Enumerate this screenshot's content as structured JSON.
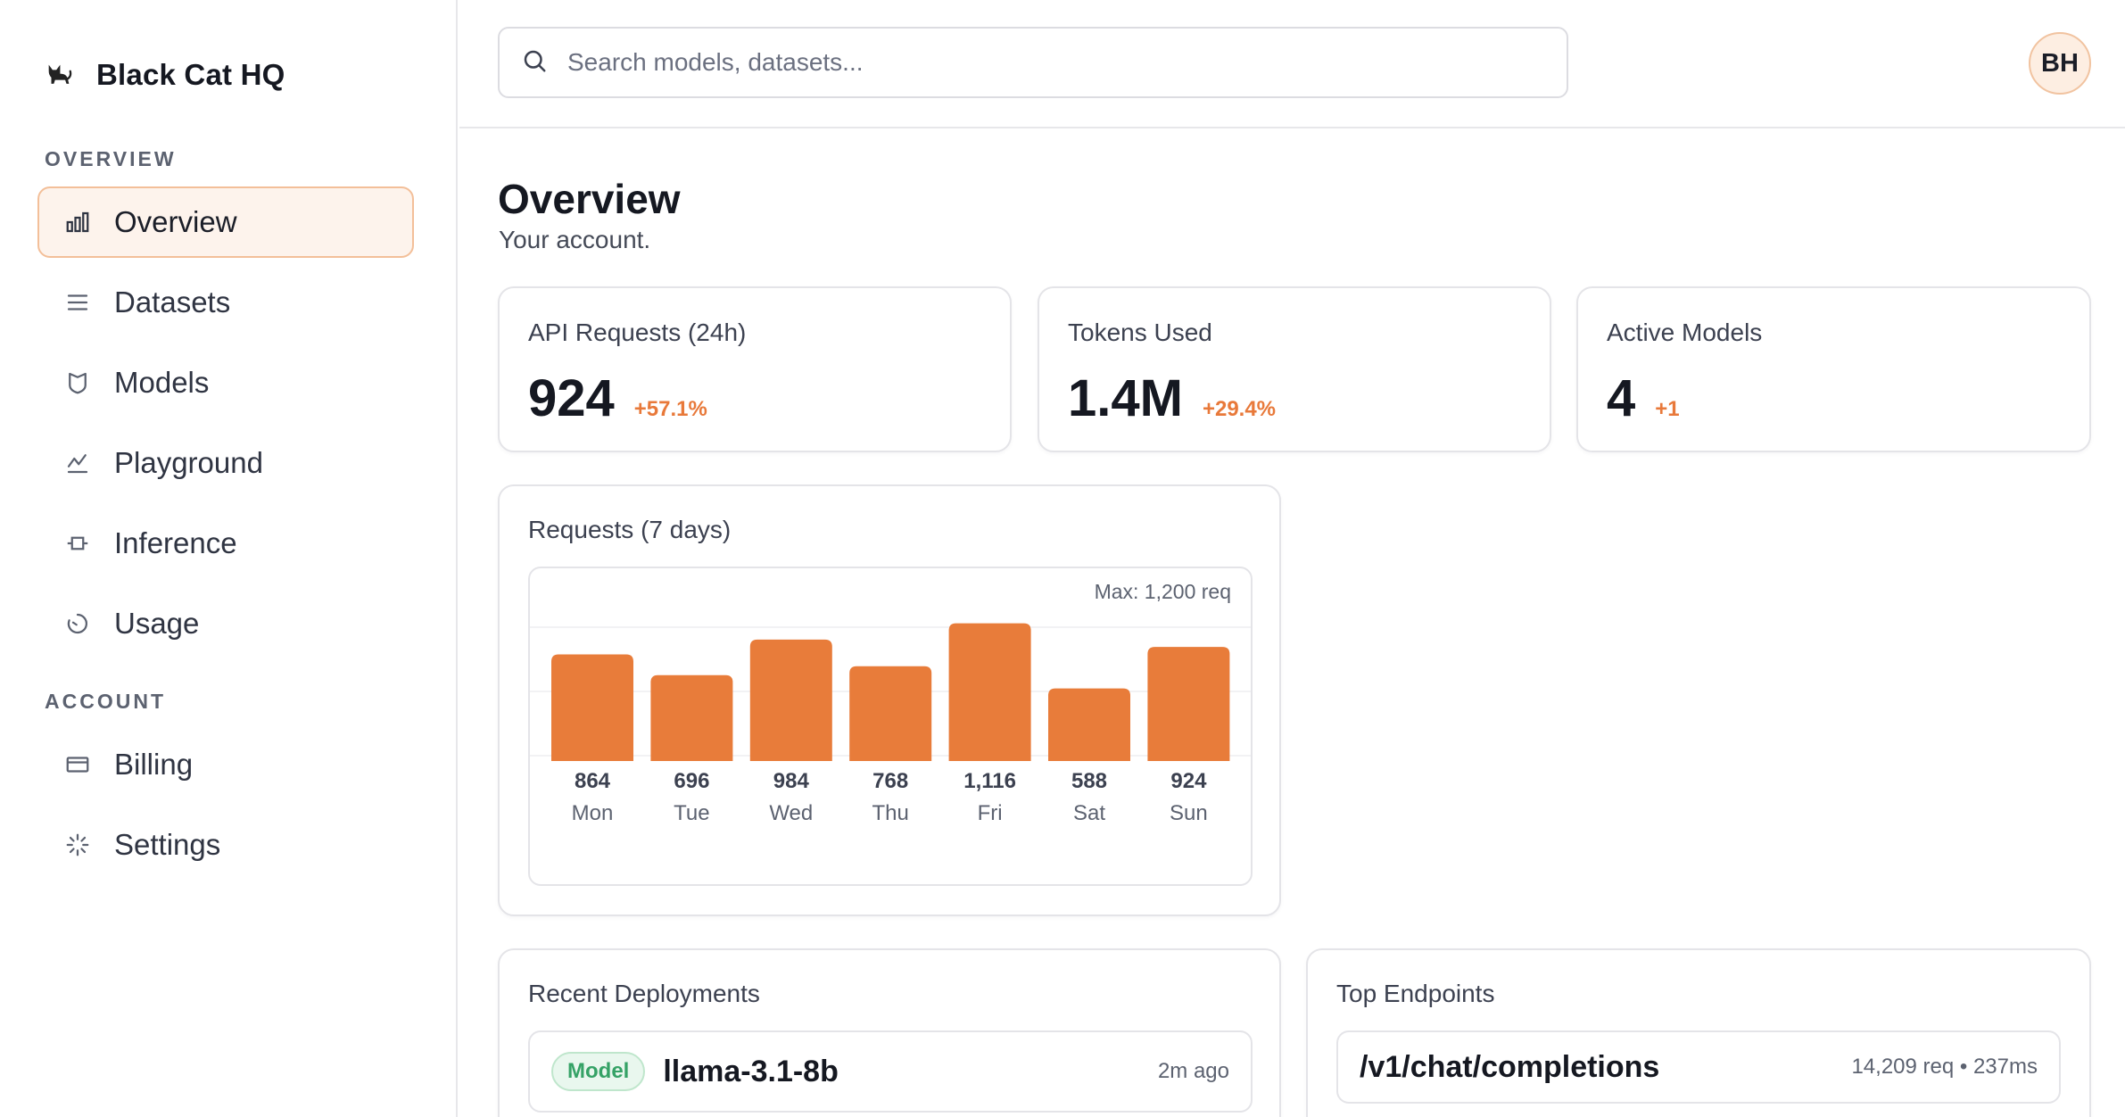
{
  "brand": {
    "name": "Black Cat HQ",
    "icon": "cat-icon"
  },
  "sidebar": {
    "sections": [
      {
        "label": "OVERVIEW"
      },
      {
        "label": "ACCOUNT"
      }
    ],
    "items": [
      {
        "label": "Overview",
        "icon": "bar-chart-icon",
        "active": true
      },
      {
        "label": "Datasets",
        "icon": "list-icon"
      },
      {
        "label": "Models",
        "icon": "shield-icon"
      },
      {
        "label": "Playground",
        "icon": "trend-icon"
      },
      {
        "label": "Inference",
        "icon": "chip-icon"
      },
      {
        "label": "Usage",
        "icon": "clock-icon"
      },
      {
        "label": "Billing",
        "icon": "card-icon"
      },
      {
        "label": "Settings",
        "icon": "spinner-icon"
      }
    ]
  },
  "search": {
    "placeholder": "Search models, datasets..."
  },
  "user": {
    "initials": "BH"
  },
  "page": {
    "title": "Overview",
    "subtitle": "Your account."
  },
  "stats": [
    {
      "title": "API Requests (24h)",
      "value": "924",
      "delta": "+57.1%"
    },
    {
      "title": "Tokens Used",
      "value": "1.4M",
      "delta": "+29.4%"
    },
    {
      "title": "Active Models",
      "value": "4",
      "delta": "+1"
    }
  ],
  "requests_chart": {
    "title": "Requests (7 days)",
    "max_label": "Max: 1,200 req"
  },
  "chart_data": {
    "type": "bar",
    "categories": [
      "Mon",
      "Tue",
      "Wed",
      "Thu",
      "Fri",
      "Sat",
      "Sun"
    ],
    "values": [
      864,
      696,
      984,
      768,
      1116,
      588,
      924
    ],
    "value_labels": [
      "864",
      "696",
      "984",
      "768",
      "1,116",
      "588",
      "924"
    ],
    "title": "Requests (7 days)",
    "ylim": [
      0,
      1200
    ],
    "color": "#e87c3a",
    "grid": true
  },
  "deployments": {
    "title": "Recent Deployments",
    "items": [
      {
        "badge": "Model",
        "name": "llama-3.1-8b",
        "time": "2m ago"
      }
    ]
  },
  "endpoints": {
    "title": "Top Endpoints",
    "items": [
      {
        "path": "/v1/chat/completions",
        "meta": "14,209 req • 237ms"
      }
    ]
  },
  "colors": {
    "accent": "#e87c3a",
    "active_bg": "#fdf3ec",
    "badge_green": "#35a266"
  }
}
